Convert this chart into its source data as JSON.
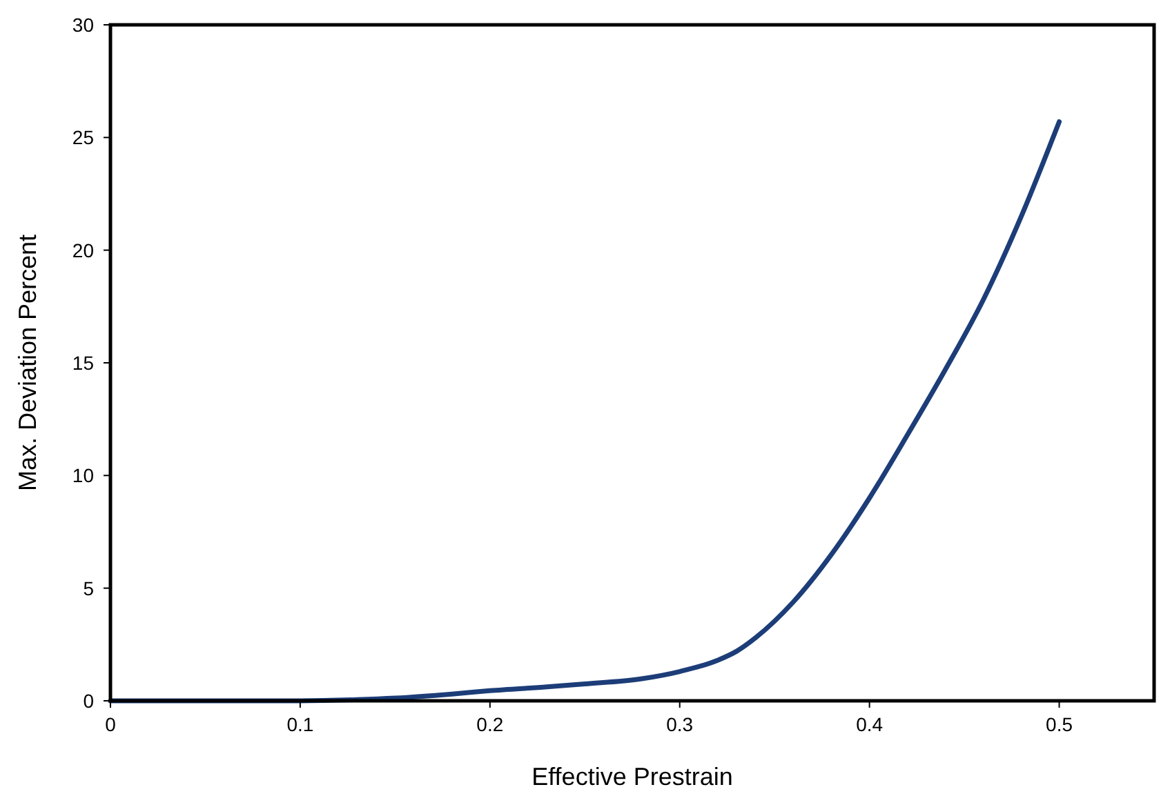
{
  "chart_data": {
    "type": "line",
    "xlabel": "Effective Prestrain",
    "ylabel": "Max. Deviation Percent",
    "xlim": [
      0,
      0.55
    ],
    "xticks": [
      0,
      0.1,
      0.2,
      0.3,
      0.4,
      0.5
    ],
    "ylim": [
      0,
      30
    ],
    "yticks": [
      0,
      5,
      10,
      15,
      20,
      25,
      30
    ],
    "grid": false,
    "marker": "none",
    "line_style": "solid",
    "series": [
      {
        "color": "#1c3d78",
        "x": [
          0,
          0.05,
          0.1,
          0.13,
          0.15,
          0.18,
          0.2,
          0.23,
          0.25,
          0.28,
          0.3,
          0.32,
          0.33,
          0.34,
          0.36,
          0.38,
          0.4,
          0.42,
          0.44,
          0.46,
          0.48,
          0.5
        ],
        "values": [
          0,
          0,
          0,
          0.05,
          0.12,
          0.3,
          0.45,
          0.62,
          0.75,
          0.98,
          1.3,
          1.8,
          2.2,
          2.8,
          4.4,
          6.5,
          9.0,
          11.8,
          14.7,
          17.8,
          21.5,
          25.7
        ]
      }
    ]
  }
}
